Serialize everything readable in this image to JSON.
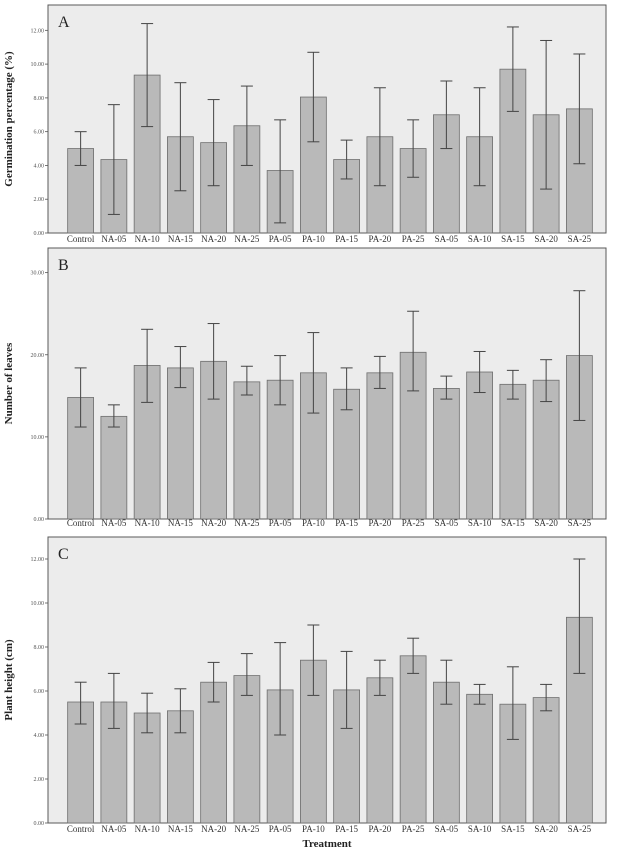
{
  "chart_data": [
    {
      "type": "bar",
      "panel_label": "A",
      "ylabel": "Germination percentage (%)",
      "xlabel": "",
      "ylim": [
        0,
        13.5
      ],
      "yticks": [
        "0.00",
        "2.00",
        "4.00",
        "6.00",
        "8.00",
        "10.00",
        "12.00"
      ],
      "grid": false,
      "categories": [
        "Control",
        "NA-05",
        "NA-10",
        "NA-15",
        "NA-20",
        "NA-25",
        "PA-05",
        "PA-10",
        "PA-15",
        "PA-20",
        "PA-25",
        "SA-05",
        "SA-10",
        "SA-15",
        "SA-20",
        "SA-25"
      ],
      "values": [
        5.0,
        4.35,
        9.35,
        5.7,
        5.35,
        6.35,
        3.7,
        8.05,
        4.35,
        5.7,
        5.0,
        7.0,
        5.7,
        9.7,
        7.0,
        7.35
      ],
      "error_low": [
        4.0,
        1.1,
        6.3,
        2.5,
        2.8,
        4.0,
        0.6,
        5.4,
        3.2,
        2.8,
        3.3,
        5.0,
        2.8,
        7.2,
        2.6,
        4.1
      ],
      "error_high": [
        6.0,
        7.6,
        12.4,
        8.9,
        7.9,
        8.7,
        6.7,
        10.7,
        5.5,
        8.6,
        6.7,
        9.0,
        8.6,
        12.2,
        11.4,
        10.6
      ]
    },
    {
      "type": "bar",
      "panel_label": "B",
      "ylabel": "Number of leaves",
      "xlabel": "",
      "ylim": [
        0,
        33
      ],
      "yticks": [
        "0.00",
        "10.00",
        "20.00",
        "30.00"
      ],
      "grid": false,
      "categories": [
        "Control",
        "NA-05",
        "NA-10",
        "NA-15",
        "NA-20",
        "NA-25",
        "PA-05",
        "PA-10",
        "PA-15",
        "PA-20",
        "PA-25",
        "SA-05",
        "SA-10",
        "SA-15",
        "SA-20",
        "SA-25"
      ],
      "values": [
        14.8,
        12.5,
        18.7,
        18.4,
        19.2,
        16.7,
        16.9,
        17.8,
        15.8,
        17.8,
        20.3,
        15.9,
        17.9,
        16.4,
        16.9,
        19.9
      ],
      "error_low": [
        11.2,
        11.2,
        14.2,
        16.0,
        14.6,
        15.1,
        13.9,
        12.9,
        13.3,
        15.9,
        15.6,
        14.6,
        15.4,
        14.6,
        14.3,
        12.0
      ],
      "error_high": [
        18.4,
        13.9,
        23.1,
        21.0,
        23.8,
        18.6,
        19.9,
        22.7,
        18.4,
        19.8,
        25.3,
        17.4,
        20.4,
        18.1,
        19.4,
        27.8
      ]
    },
    {
      "type": "bar",
      "panel_label": "C",
      "ylabel": "Plant height (cm)",
      "xlabel": "Treatment",
      "ylim": [
        0,
        13
      ],
      "yticks": [
        "0.00",
        "2.00",
        "4.00",
        "6.00",
        "8.00",
        "10.00",
        "12.00"
      ],
      "grid": false,
      "categories": [
        "Control",
        "NA-05",
        "NA-10",
        "NA-15",
        "NA-20",
        "NA-25",
        "PA-05",
        "PA-10",
        "PA-15",
        "PA-20",
        "PA-25",
        "SA-05",
        "SA-10",
        "SA-15",
        "SA-20",
        "SA-25"
      ],
      "values": [
        5.5,
        5.5,
        5.0,
        5.1,
        6.4,
        6.7,
        6.05,
        7.4,
        6.05,
        6.6,
        7.6,
        6.4,
        5.85,
        5.4,
        5.7,
        9.35
      ],
      "error_low": [
        4.5,
        4.3,
        4.1,
        4.1,
        5.5,
        5.8,
        4.0,
        5.8,
        4.3,
        5.8,
        6.8,
        5.4,
        5.4,
        3.8,
        5.1,
        6.8
      ],
      "error_high": [
        6.4,
        6.8,
        5.9,
        6.1,
        7.3,
        7.7,
        8.2,
        9.0,
        7.8,
        7.4,
        8.4,
        7.4,
        6.3,
        7.1,
        6.3,
        12.0
      ]
    }
  ]
}
